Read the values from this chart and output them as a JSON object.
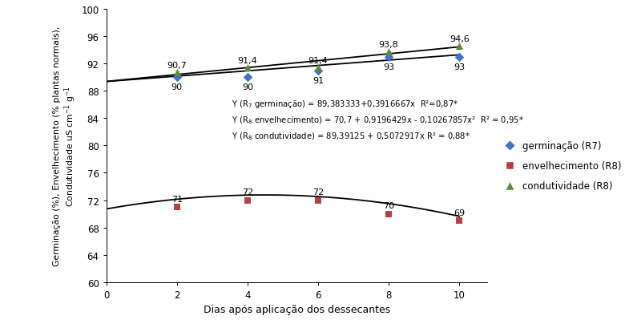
{
  "x_points": [
    2,
    4,
    6,
    8,
    10
  ],
  "germ_y": [
    90,
    90,
    91,
    93,
    93
  ],
  "env_y": [
    71,
    72,
    72,
    70,
    69
  ],
  "cond_y": [
    90.7,
    91.4,
    91.4,
    93.8,
    94.6
  ],
  "germ_labels": [
    "90",
    "90",
    "91",
    "93",
    "93"
  ],
  "env_labels": [
    "71",
    "72",
    "72",
    "70",
    "69"
  ],
  "cond_labels": [
    "90,7",
    "91,4",
    "91,4",
    "93,8",
    "94,6"
  ],
  "xlabel": "Dias após aplicação dos dessecantes",
  "xlim": [
    0,
    10.8
  ],
  "ylim": [
    60,
    100
  ],
  "yticks": [
    60,
    64,
    68,
    72,
    76,
    80,
    84,
    88,
    92,
    96,
    100
  ],
  "xticks": [
    0,
    2,
    4,
    6,
    8,
    10
  ],
  "germ_color": "#4472C4",
  "env_color": "#B94040",
  "cond_color": "#5B8B3E",
  "line_color": "#000000",
  "legend_germ": "germinação (R7)",
  "legend_env": "envelhecimento (R8)",
  "legend_cond": "condutividade (R8)",
  "a1": 89.383333,
  "b1": 0.3916667,
  "a2": 70.7,
  "b2": 0.9196429,
  "c2": -0.10267857,
  "a3": 89.39125,
  "b3": 0.5072917
}
